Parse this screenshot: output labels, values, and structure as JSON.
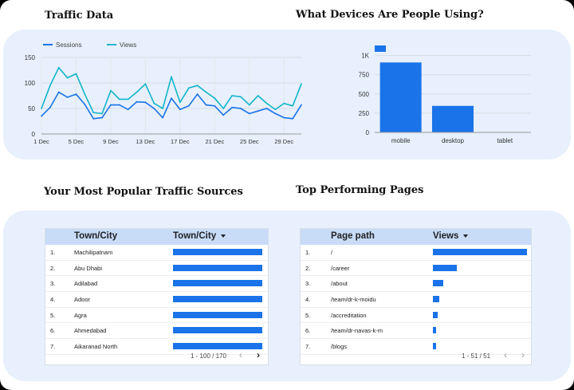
{
  "sections": {
    "traffic": {
      "title": "Traffic Data"
    },
    "devices": {
      "title": "What Devices Are People Using?"
    },
    "sources": {
      "title": "Your Most Popular Traffic Sources"
    },
    "pages": {
      "title": "Top Performing Pages"
    }
  },
  "colors": {
    "sessions": "#1a73e8",
    "views": "#12b5cb",
    "bar": "#1a73e8",
    "band": "#e7f0fc"
  },
  "chart_data": [
    {
      "type": "line",
      "legend_position": "top-left",
      "grid": true,
      "x": [
        "1 Dec",
        "2 Dec",
        "3 Dec",
        "4 Dec",
        "5 Dec",
        "6 Dec",
        "7 Dec",
        "8 Dec",
        "9 Dec",
        "10 Dec",
        "11 Dec",
        "12 Dec",
        "13 Dec",
        "14 Dec",
        "15 Dec",
        "16 Dec",
        "17 Dec",
        "18 Dec",
        "19 Dec",
        "20 Dec",
        "21 Dec",
        "22 Dec",
        "23 Dec",
        "24 Dec",
        "25 Dec",
        "26 Dec",
        "27 Dec",
        "28 Dec",
        "29 Dec",
        "30 Dec",
        "31 Dec"
      ],
      "x_ticks": [
        "1 Dec",
        "5 Dec",
        "9 Dec",
        "13 Dec",
        "17 Dec",
        "21 Dec",
        "25 Dec",
        "29 Dec"
      ],
      "ylim": [
        0,
        150
      ],
      "y_ticks": [
        0,
        50,
        100,
        150
      ],
      "series": [
        {
          "name": "Sessions",
          "values": [
            35,
            52,
            82,
            72,
            78,
            58,
            30,
            32,
            57,
            57,
            48,
            63,
            62,
            50,
            32,
            70,
            48,
            55,
            78,
            57,
            55,
            37,
            52,
            50,
            40,
            45,
            50,
            40,
            32,
            30,
            57
          ]
        },
        {
          "name": "Views",
          "values": [
            50,
            95,
            130,
            110,
            118,
            78,
            42,
            40,
            85,
            68,
            68,
            82,
            98,
            60,
            50,
            112,
            62,
            90,
            95,
            82,
            70,
            50,
            75,
            73,
            57,
            75,
            60,
            48,
            60,
            55,
            98
          ]
        }
      ]
    },
    {
      "type": "bar",
      "grid": true,
      "legend_position": "top-left",
      "categories": [
        "mobile",
        "desktop",
        "tablet"
      ],
      "values": [
        910,
        345,
        2
      ],
      "ylim": [
        0,
        1100
      ],
      "y_ticks": [
        0,
        250,
        500,
        750
      ],
      "y_tick_labels": [
        "0",
        "250",
        "500",
        "750"
      ],
      "extra_y_tick": {
        "value": 1000,
        "label": "1K"
      }
    }
  ],
  "sources_table": {
    "col1": "Town/City",
    "col2": "Town/City",
    "rows": [
      {
        "idx": "1.",
        "label": "Machilipatnam",
        "value": 100
      },
      {
        "idx": "2.",
        "label": "Abu Dhabi",
        "value": 100
      },
      {
        "idx": "3.",
        "label": "Adilabad",
        "value": 100
      },
      {
        "idx": "4.",
        "label": "Adoor",
        "value": 100
      },
      {
        "idx": "5.",
        "label": "Agra",
        "value": 100
      },
      {
        "idx": "6.",
        "label": "Ahmedabad",
        "value": 100
      },
      {
        "idx": "7.",
        "label": "Aikaranad North",
        "value": 100
      }
    ],
    "range": "1 - 100 / 170"
  },
  "pages_table": {
    "col1": "Page path",
    "col2": "Views",
    "rows": [
      {
        "idx": "1.",
        "label": "/",
        "value": 100
      },
      {
        "idx": "2.",
        "label": "/career",
        "value": 25
      },
      {
        "idx": "3.",
        "label": "/about",
        "value": 11
      },
      {
        "idx": "4.",
        "label": "/team/dr-k-moidu",
        "value": 7
      },
      {
        "idx": "5.",
        "label": "/accreditation",
        "value": 5
      },
      {
        "idx": "6.",
        "label": "/team/dr-navas-k-m",
        "value": 3
      },
      {
        "idx": "7.",
        "label": "/blogs",
        "value": 3
      }
    ],
    "range": "1 - 51 / 51"
  }
}
